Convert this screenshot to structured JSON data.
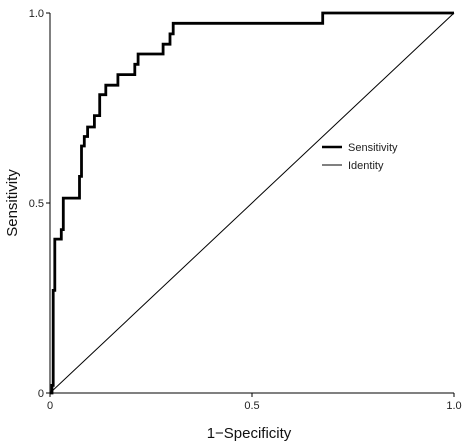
{
  "chart_data": {
    "type": "line",
    "xlabel": "1−Specificity",
    "ylabel": "Sensitivity",
    "xlim": [
      0,
      1
    ],
    "ylim": [
      0,
      1
    ],
    "x_ticks": [
      "0",
      "0.5",
      "1.0"
    ],
    "x_tick_values": [
      0,
      0.5,
      1.0
    ],
    "y_ticks": [
      "0",
      "0.5",
      "1.0"
    ],
    "y_tick_values": [
      0,
      0.5,
      1.0
    ],
    "grid": false,
    "legend_position": "right",
    "series": [
      {
        "name": "Sensitivity",
        "color": "#000000",
        "points": [
          [
            0,
            0
          ],
          [
            0.005,
            0
          ],
          [
            0.005,
            0.02
          ],
          [
            0.008,
            0.02
          ],
          [
            0.008,
            0.27
          ],
          [
            0.012,
            0.27
          ],
          [
            0.012,
            0.405
          ],
          [
            0.028,
            0.405
          ],
          [
            0.028,
            0.43
          ],
          [
            0.033,
            0.43
          ],
          [
            0.033,
            0.513
          ],
          [
            0.073,
            0.513
          ],
          [
            0.073,
            0.57
          ],
          [
            0.078,
            0.57
          ],
          [
            0.078,
            0.65
          ],
          [
            0.085,
            0.65
          ],
          [
            0.085,
            0.675
          ],
          [
            0.093,
            0.675
          ],
          [
            0.093,
            0.7
          ],
          [
            0.11,
            0.7
          ],
          [
            0.11,
            0.73
          ],
          [
            0.123,
            0.73
          ],
          [
            0.123,
            0.785
          ],
          [
            0.138,
            0.785
          ],
          [
            0.138,
            0.81
          ],
          [
            0.168,
            0.81
          ],
          [
            0.168,
            0.838
          ],
          [
            0.21,
            0.838
          ],
          [
            0.21,
            0.865
          ],
          [
            0.218,
            0.865
          ],
          [
            0.218,
            0.892
          ],
          [
            0.28,
            0.892
          ],
          [
            0.28,
            0.918
          ],
          [
            0.297,
            0.918
          ],
          [
            0.297,
            0.945
          ],
          [
            0.305,
            0.945
          ],
          [
            0.305,
            0.973
          ],
          [
            0.675,
            0.973
          ],
          [
            0.675,
            1.0
          ],
          [
            1.0,
            1.0
          ]
        ]
      },
      {
        "name": "Identity",
        "color": "#000000",
        "points": [
          [
            0,
            0
          ],
          [
            1,
            1
          ]
        ]
      }
    ]
  }
}
